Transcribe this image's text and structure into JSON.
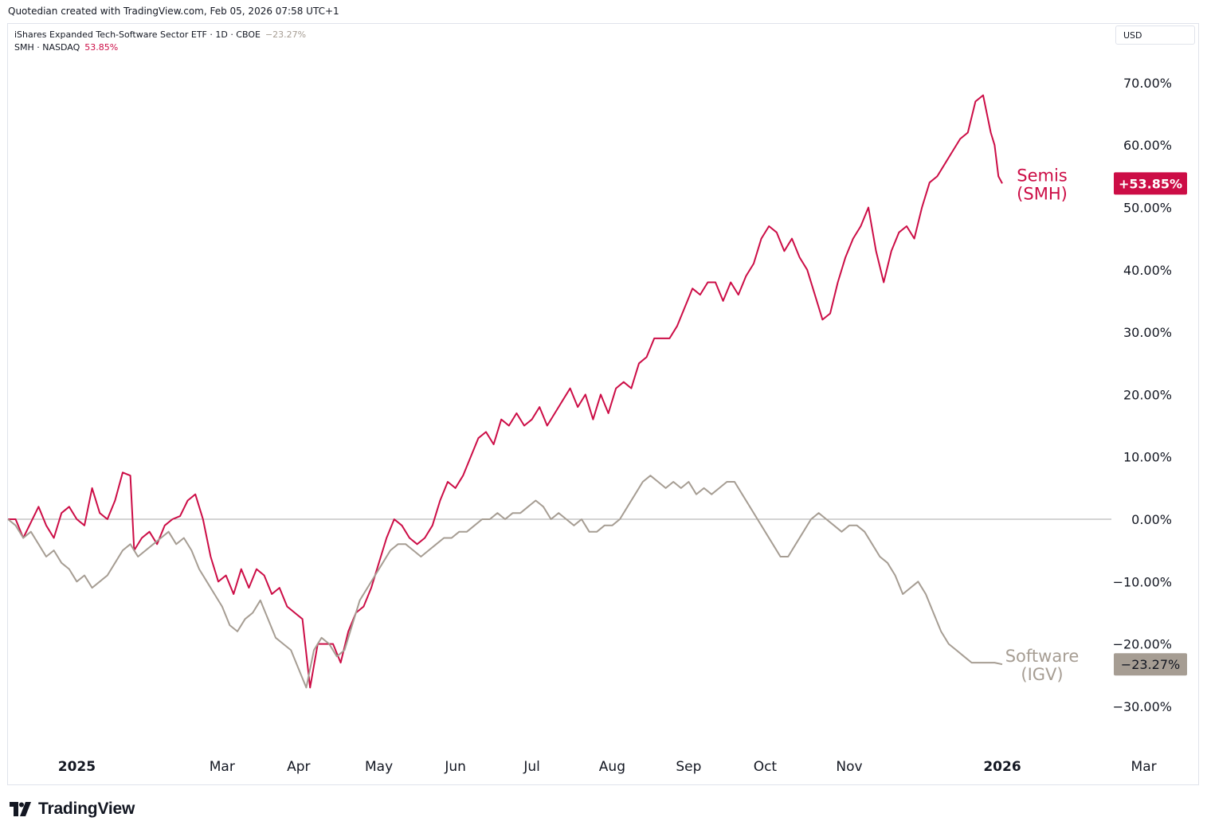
{
  "header": {
    "credit": "Quotedian created with TradingView.com, Feb 05, 2026 07:58 UTC+1",
    "currency": "USD"
  },
  "legend": [
    {
      "label": "iShares Expanded Tech-Software Sector ETF · 1D · CBOE",
      "value": "−23.27%",
      "color": "#a69d93"
    },
    {
      "label": "SMH · NASDAQ",
      "value": "53.85%",
      "color": "#cc0d46"
    }
  ],
  "footer": {
    "brand": "TradingView"
  },
  "chart_data": {
    "type": "line",
    "x_unit": "trading day index (0 = 2024-12-31, ~Jan 1 2025)",
    "yticks": [
      70,
      60,
      50,
      40,
      30,
      20,
      10,
      0,
      -10,
      -20,
      -30
    ],
    "ytick_labels": [
      "70.00%",
      "60.00%",
      "50.00%",
      "40.00%",
      "30.00%",
      "20.00%",
      "10.00%",
      "0.00%",
      "−10.00%",
      "−20.00%",
      "−30.00%"
    ],
    "ylim": [
      -40,
      82
    ],
    "xlim": [
      0,
      280
    ],
    "xticks": [
      {
        "label": "2025",
        "day": 18,
        "bold": true
      },
      {
        "label": "Mar",
        "day": 56
      },
      {
        "label": "Apr",
        "day": 76
      },
      {
        "label": "May",
        "day": 97
      },
      {
        "label": "Jun",
        "day": 117
      },
      {
        "label": "Jul",
        "day": 137
      },
      {
        "label": "Aug",
        "day": 158
      },
      {
        "label": "Sep",
        "day": 178
      },
      {
        "label": "Oct",
        "day": 198
      },
      {
        "label": "Nov",
        "day": 220
      },
      {
        "label": "2026",
        "day": 260,
        "bold": true
      },
      {
        "label": "Mar",
        "day": 297
      }
    ],
    "series": [
      {
        "name": "Semis (SMH)",
        "label_lines": [
          "Semis",
          "(SMH)"
        ],
        "last_value_label": "+53.85%",
        "color": "#cc0d46",
        "points": [
          [
            0,
            0
          ],
          [
            2,
            0
          ],
          [
            4,
            -3
          ],
          [
            6,
            -0.5
          ],
          [
            8,
            2
          ],
          [
            10,
            -1
          ],
          [
            12,
            -3
          ],
          [
            14,
            1
          ],
          [
            16,
            2
          ],
          [
            18,
            0
          ],
          [
            20,
            -1
          ],
          [
            22,
            5
          ],
          [
            24,
            1
          ],
          [
            26,
            0
          ],
          [
            28,
            3
          ],
          [
            30,
            7.5
          ],
          [
            32,
            7
          ],
          [
            33,
            -5
          ],
          [
            35,
            -3
          ],
          [
            37,
            -2
          ],
          [
            39,
            -4
          ],
          [
            41,
            -1
          ],
          [
            43,
            0
          ],
          [
            45,
            0.5
          ],
          [
            47,
            3
          ],
          [
            49,
            4
          ],
          [
            51,
            0
          ],
          [
            53,
            -6
          ],
          [
            55,
            -10
          ],
          [
            57,
            -9
          ],
          [
            59,
            -12
          ],
          [
            61,
            -8
          ],
          [
            63,
            -11
          ],
          [
            65,
            -8
          ],
          [
            67,
            -9
          ],
          [
            69,
            -12
          ],
          [
            71,
            -11
          ],
          [
            73,
            -14
          ],
          [
            75,
            -15
          ],
          [
            77,
            -16
          ],
          [
            79,
            -27
          ],
          [
            81,
            -20
          ],
          [
            83,
            -20
          ],
          [
            85,
            -20
          ],
          [
            87,
            -23
          ],
          [
            89,
            -18
          ],
          [
            91,
            -15
          ],
          [
            93,
            -14
          ],
          [
            95,
            -11
          ],
          [
            97,
            -7
          ],
          [
            99,
            -3
          ],
          [
            101,
            0
          ],
          [
            103,
            -1
          ],
          [
            105,
            -3
          ],
          [
            107,
            -4
          ],
          [
            109,
            -3
          ],
          [
            111,
            -1
          ],
          [
            113,
            3
          ],
          [
            115,
            6
          ],
          [
            117,
            5
          ],
          [
            119,
            7
          ],
          [
            121,
            10
          ],
          [
            123,
            13
          ],
          [
            125,
            14
          ],
          [
            127,
            12
          ],
          [
            129,
            16
          ],
          [
            131,
            15
          ],
          [
            133,
            17
          ],
          [
            135,
            15
          ],
          [
            137,
            16
          ],
          [
            139,
            18
          ],
          [
            141,
            15
          ],
          [
            143,
            17
          ],
          [
            145,
            19
          ],
          [
            147,
            21
          ],
          [
            149,
            18
          ],
          [
            151,
            20
          ],
          [
            153,
            16
          ],
          [
            155,
            20
          ],
          [
            157,
            17
          ],
          [
            159,
            21
          ],
          [
            161,
            22
          ],
          [
            163,
            21
          ],
          [
            165,
            25
          ],
          [
            167,
            26
          ],
          [
            169,
            29
          ],
          [
            171,
            29
          ],
          [
            173,
            29
          ],
          [
            175,
            31
          ],
          [
            177,
            34
          ],
          [
            179,
            37
          ],
          [
            181,
            36
          ],
          [
            183,
            38
          ],
          [
            185,
            38
          ],
          [
            187,
            35
          ],
          [
            189,
            38
          ],
          [
            191,
            36
          ],
          [
            193,
            39
          ],
          [
            195,
            41
          ],
          [
            197,
            45
          ],
          [
            199,
            47
          ],
          [
            201,
            46
          ],
          [
            203,
            43
          ],
          [
            205,
            45
          ],
          [
            207,
            42
          ],
          [
            209,
            40
          ],
          [
            211,
            36
          ],
          [
            213,
            32
          ],
          [
            215,
            33
          ],
          [
            217,
            38
          ],
          [
            219,
            42
          ],
          [
            221,
            45
          ],
          [
            223,
            47
          ],
          [
            225,
            50
          ],
          [
            227,
            43
          ],
          [
            229,
            38
          ],
          [
            231,
            43
          ],
          [
            233,
            46
          ],
          [
            235,
            47
          ],
          [
            237,
            45
          ],
          [
            239,
            50
          ],
          [
            241,
            54
          ],
          [
            243,
            55
          ],
          [
            245,
            57
          ],
          [
            247,
            59
          ],
          [
            249,
            61
          ],
          [
            251,
            62
          ],
          [
            253,
            67
          ],
          [
            255,
            68
          ],
          [
            257,
            62
          ],
          [
            258,
            60
          ],
          [
            259,
            55
          ],
          [
            260,
            53.85
          ]
        ]
      },
      {
        "name": "Software (IGV)",
        "label_lines": [
          "Software",
          "(IGV)"
        ],
        "last_value_label": "−23.27%",
        "color": "#a69d93",
        "points": [
          [
            0,
            0
          ],
          [
            2,
            -1
          ],
          [
            4,
            -3
          ],
          [
            6,
            -2
          ],
          [
            8,
            -4
          ],
          [
            10,
            -6
          ],
          [
            12,
            -5
          ],
          [
            14,
            -7
          ],
          [
            16,
            -8
          ],
          [
            18,
            -10
          ],
          [
            20,
            -9
          ],
          [
            22,
            -11
          ],
          [
            24,
            -10
          ],
          [
            26,
            -9
          ],
          [
            28,
            -7
          ],
          [
            30,
            -5
          ],
          [
            32,
            -4
          ],
          [
            34,
            -6
          ],
          [
            36,
            -5
          ],
          [
            38,
            -4
          ],
          [
            40,
            -3
          ],
          [
            42,
            -2
          ],
          [
            44,
            -4
          ],
          [
            46,
            -3
          ],
          [
            48,
            -5
          ],
          [
            50,
            -8
          ],
          [
            52,
            -10
          ],
          [
            54,
            -12
          ],
          [
            56,
            -14
          ],
          [
            58,
            -17
          ],
          [
            60,
            -18
          ],
          [
            62,
            -16
          ],
          [
            64,
            -15
          ],
          [
            66,
            -13
          ],
          [
            68,
            -16
          ],
          [
            70,
            -19
          ],
          [
            72,
            -20
          ],
          [
            74,
            -21
          ],
          [
            76,
            -24
          ],
          [
            78,
            -27
          ],
          [
            80,
            -21
          ],
          [
            82,
            -19
          ],
          [
            84,
            -20
          ],
          [
            86,
            -22
          ],
          [
            88,
            -21
          ],
          [
            90,
            -17
          ],
          [
            92,
            -13
          ],
          [
            94,
            -11
          ],
          [
            96,
            -9
          ],
          [
            98,
            -7
          ],
          [
            100,
            -5
          ],
          [
            102,
            -4
          ],
          [
            104,
            -4
          ],
          [
            106,
            -5
          ],
          [
            108,
            -6
          ],
          [
            110,
            -5
          ],
          [
            112,
            -4
          ],
          [
            114,
            -3
          ],
          [
            116,
            -3
          ],
          [
            118,
            -2
          ],
          [
            120,
            -2
          ],
          [
            122,
            -1
          ],
          [
            124,
            0
          ],
          [
            126,
            0
          ],
          [
            128,
            1
          ],
          [
            130,
            0
          ],
          [
            132,
            1
          ],
          [
            134,
            1
          ],
          [
            136,
            2
          ],
          [
            138,
            3
          ],
          [
            140,
            2
          ],
          [
            142,
            0
          ],
          [
            144,
            1
          ],
          [
            146,
            0
          ],
          [
            148,
            -1
          ],
          [
            150,
            0
          ],
          [
            152,
            -2
          ],
          [
            154,
            -2
          ],
          [
            156,
            -1
          ],
          [
            158,
            -1
          ],
          [
            160,
            0
          ],
          [
            162,
            2
          ],
          [
            164,
            4
          ],
          [
            166,
            6
          ],
          [
            168,
            7
          ],
          [
            170,
            6
          ],
          [
            172,
            5
          ],
          [
            174,
            6
          ],
          [
            176,
            5
          ],
          [
            178,
            6
          ],
          [
            180,
            4
          ],
          [
            182,
            5
          ],
          [
            184,
            4
          ],
          [
            186,
            5
          ],
          [
            188,
            6
          ],
          [
            190,
            6
          ],
          [
            192,
            4
          ],
          [
            194,
            2
          ],
          [
            196,
            0
          ],
          [
            198,
            -2
          ],
          [
            200,
            -4
          ],
          [
            202,
            -6
          ],
          [
            204,
            -6
          ],
          [
            206,
            -4
          ],
          [
            208,
            -2
          ],
          [
            210,
            0
          ],
          [
            212,
            1
          ],
          [
            214,
            0
          ],
          [
            216,
            -1
          ],
          [
            218,
            -2
          ],
          [
            220,
            -1
          ],
          [
            222,
            -1
          ],
          [
            224,
            -2
          ],
          [
            226,
            -4
          ],
          [
            228,
            -6
          ],
          [
            230,
            -7
          ],
          [
            232,
            -9
          ],
          [
            234,
            -12
          ],
          [
            236,
            -11
          ],
          [
            238,
            -10
          ],
          [
            240,
            -12
          ],
          [
            242,
            -15
          ],
          [
            244,
            -18
          ],
          [
            246,
            -20
          ],
          [
            248,
            -21
          ],
          [
            250,
            -22
          ],
          [
            252,
            -23
          ],
          [
            254,
            -23
          ],
          [
            256,
            -23
          ],
          [
            258,
            -23
          ],
          [
            260,
            -23.27
          ]
        ]
      }
    ]
  }
}
